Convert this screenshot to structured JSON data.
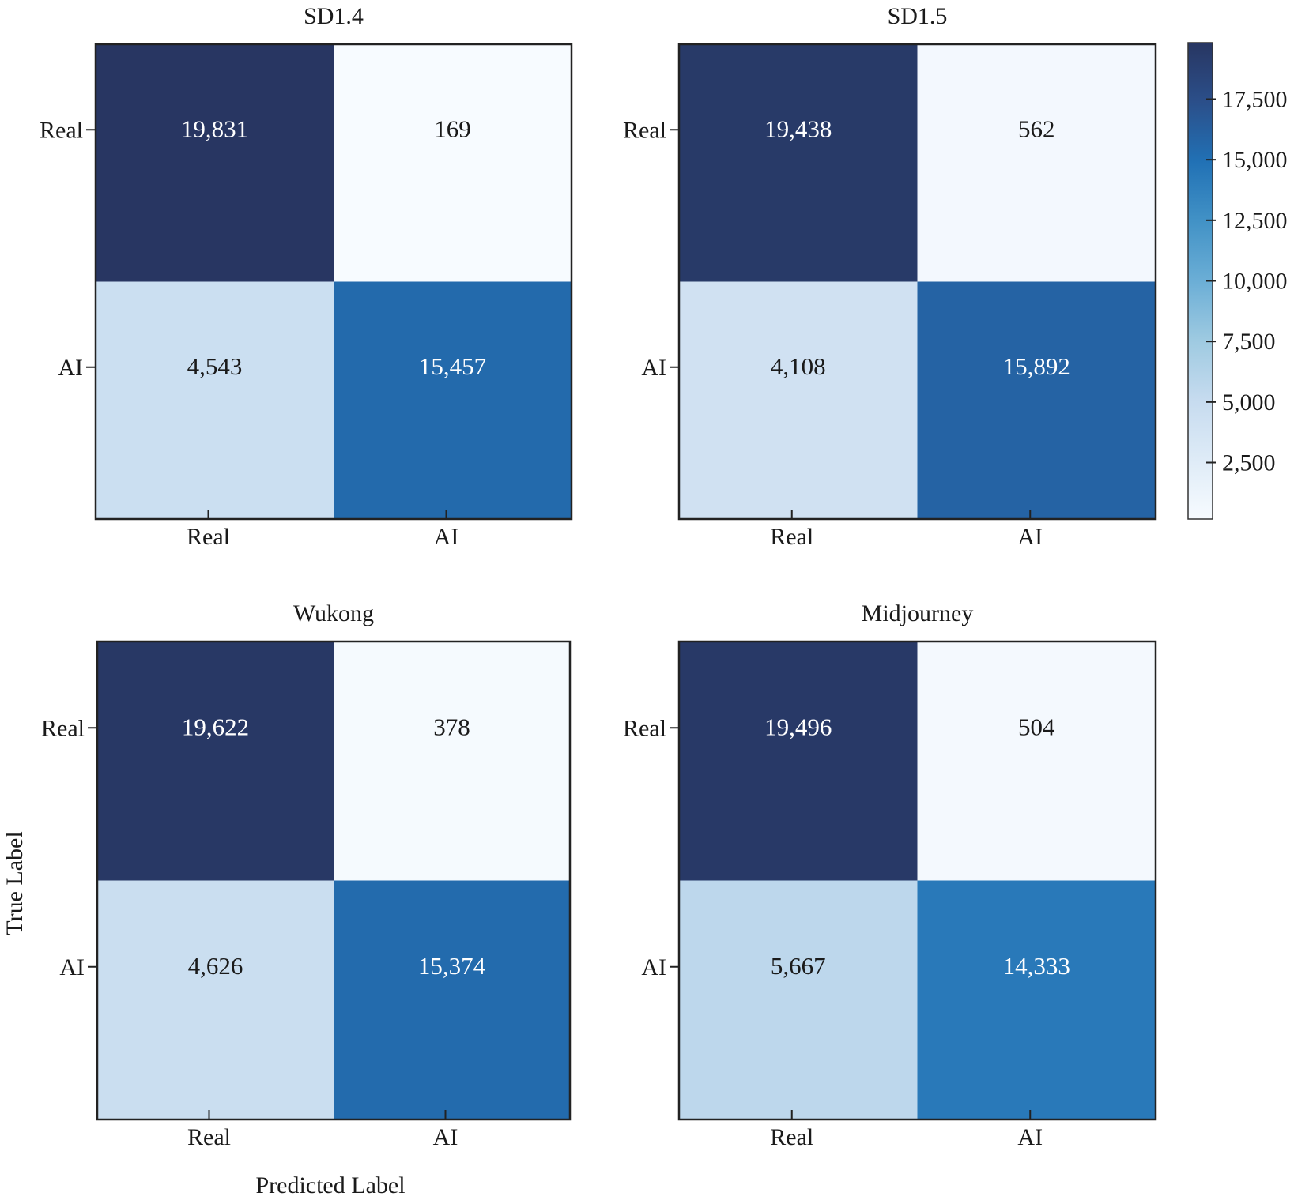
{
  "chart_data": [
    {
      "type": "heatmap",
      "title": "SD1.4",
      "row_labels": [
        "Real",
        "AI"
      ],
      "col_labels": [
        "Real",
        "AI"
      ],
      "values": [
        [
          19831,
          169
        ],
        [
          4543,
          15457
        ]
      ],
      "value_labels": [
        [
          "19,831",
          "169"
        ],
        [
          "4,543",
          "15,457"
        ]
      ]
    },
    {
      "type": "heatmap",
      "title": "SD1.5",
      "row_labels": [
        "Real",
        "AI"
      ],
      "col_labels": [
        "Real",
        "AI"
      ],
      "values": [
        [
          19438,
          562
        ],
        [
          4108,
          15892
        ]
      ],
      "value_labels": [
        [
          "19,438",
          "562"
        ],
        [
          "4,108",
          "15,892"
        ]
      ]
    },
    {
      "type": "heatmap",
      "title": "Wukong",
      "row_labels": [
        "Real",
        "AI"
      ],
      "col_labels": [
        "Real",
        "AI"
      ],
      "values": [
        [
          19622,
          378
        ],
        [
          4626,
          15374
        ]
      ],
      "value_labels": [
        [
          "19,622",
          "378"
        ],
        [
          "4,626",
          "15,374"
        ]
      ]
    },
    {
      "type": "heatmap",
      "title": "Midjourney",
      "row_labels": [
        "Real",
        "AI"
      ],
      "col_labels": [
        "Real",
        "AI"
      ],
      "values": [
        [
          19496,
          504
        ],
        [
          5667,
          14333
        ]
      ],
      "value_labels": [
        [
          "19,496",
          "504"
        ],
        [
          "5,667",
          "14,333"
        ]
      ]
    }
  ],
  "ylabel": "True Label",
  "xlabel": "Predicted Label",
  "colorbar": {
    "range": [
      169,
      19831
    ],
    "ticks": [
      2500,
      5000,
      7500,
      10000,
      12500,
      15000,
      17500
    ],
    "tick_labels": [
      "2,500",
      "5,000",
      "7,500",
      "10,000",
      "12,500",
      "15,000",
      "17,500"
    ],
    "colormap": "Blues",
    "colors": [
      "#f7fbff",
      "#deebf7",
      "#c6dbef",
      "#9ecae1",
      "#6baed6",
      "#4292c6",
      "#2171b5",
      "#2b4f8a",
      "#283662"
    ]
  }
}
